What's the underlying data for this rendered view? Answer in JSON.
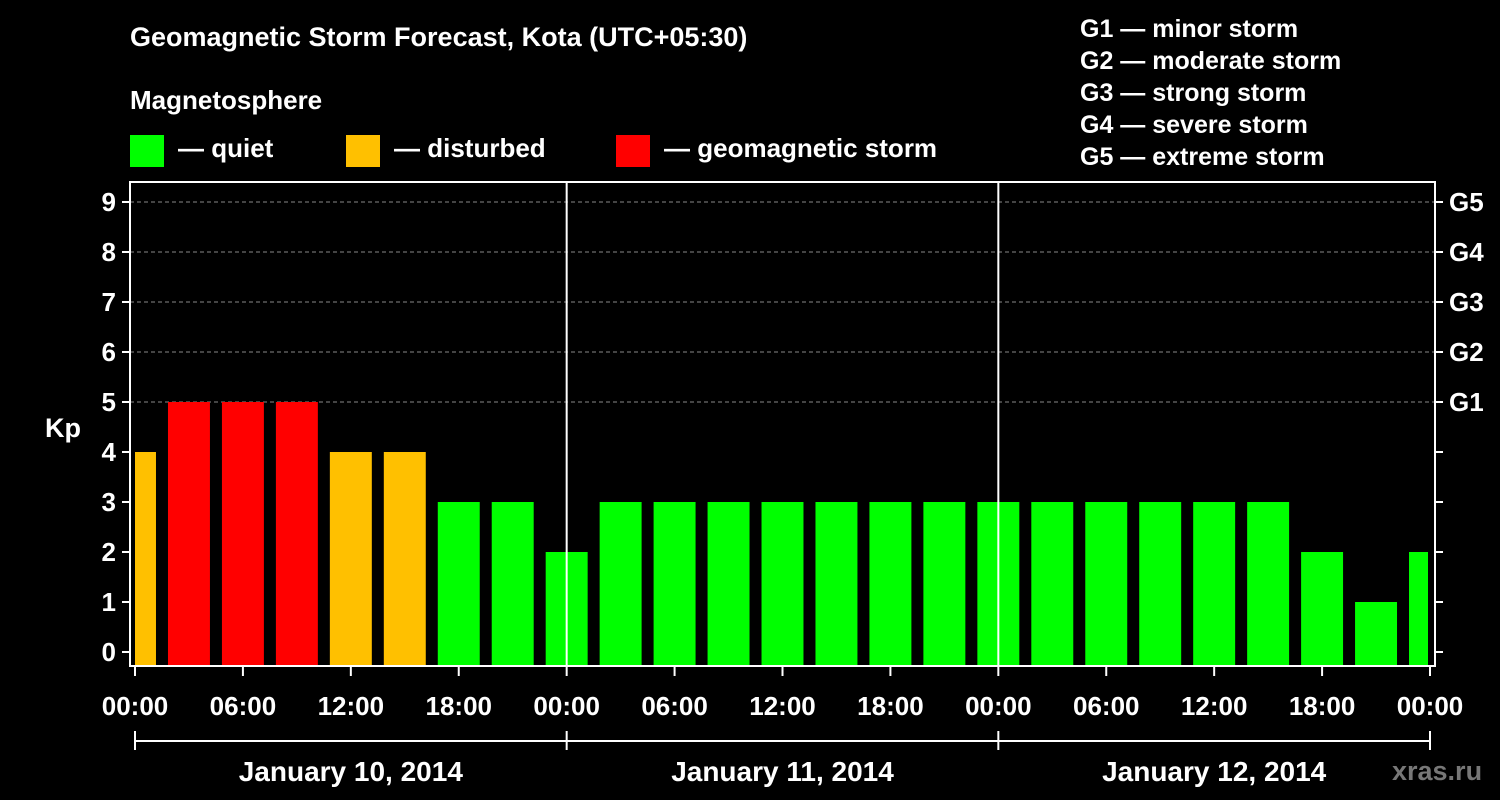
{
  "title": "Geomagnetic Storm Forecast, Kota (UTC+05:30)",
  "magnetosphere_label": "Magnetosphere",
  "legend": [
    {
      "label": "— quiet",
      "color": "#00ff00"
    },
    {
      "label": "— disturbed",
      "color": "#ffc000"
    },
    {
      "label": "— geomagnetic storm",
      "color": "#ff0000"
    }
  ],
  "storm_scale": [
    "G1 — minor storm",
    "G2 — moderate storm",
    "G3 — strong storm",
    "G4 — severe storm",
    "G5 — extreme storm"
  ],
  "watermark": "xras.ru",
  "colors": {
    "quiet": "#00ff00",
    "disturbed": "#ffc000",
    "storm": "#ff0000",
    "background": "#000000"
  },
  "chart_data": {
    "type": "bar",
    "ylabel": "Kp",
    "ylim": [
      0,
      9
    ],
    "yticks": [
      "0",
      "1",
      "2",
      "3",
      "4",
      "5",
      "6",
      "7",
      "8",
      "9"
    ],
    "right_ticks": [
      {
        "kp": 5,
        "label": "G1"
      },
      {
        "kp": 6,
        "label": "G2"
      },
      {
        "kp": 7,
        "label": "G3"
      },
      {
        "kp": 8,
        "label": "G4"
      },
      {
        "kp": 9,
        "label": "G5"
      }
    ],
    "x_tick_labels": [
      "00:00",
      "06:00",
      "12:00",
      "18:00",
      "00:00",
      "06:00",
      "12:00",
      "18:00",
      "00:00",
      "06:00",
      "12:00",
      "18:00",
      "00:00"
    ],
    "x_tick_hours": [
      0,
      6,
      12,
      18,
      24,
      30,
      36,
      42,
      48,
      54,
      60,
      66,
      72
    ],
    "day_labels": [
      "January 10, 2014",
      "January 11, 2014",
      "January 12, 2014"
    ],
    "bar_interval_hours": 3,
    "first_bar_start_hour": -1.5,
    "values": [
      4,
      5,
      5,
      5,
      4,
      4,
      3,
      3,
      2,
      3,
      3,
      3,
      3,
      3,
      3,
      3,
      3,
      3,
      3,
      3,
      3,
      3,
      2,
      1,
      2
    ],
    "gridlines": true
  }
}
